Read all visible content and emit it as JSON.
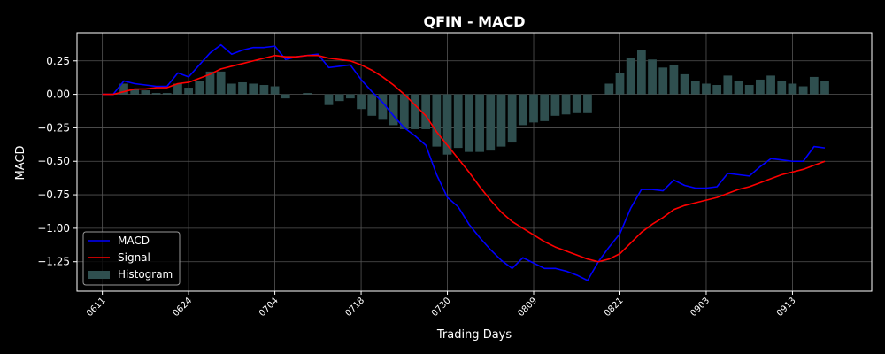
{
  "chart_data": {
    "type": "line",
    "title": "QFIN - MACD",
    "xlabel": "Trading Days",
    "ylabel": "MACD",
    "ylim": [
      -1.47,
      0.46
    ],
    "xlim": [
      -2.35,
      71.35
    ],
    "grid": true,
    "legend_position": "lower-left",
    "yticks": [
      0.25,
      0.0,
      -0.25,
      -0.5,
      -0.75,
      -1.0,
      -1.25
    ],
    "ytick_labels": [
      "0.25",
      "0.00",
      "−0.25",
      "−0.50",
      "−0.75",
      "−1.00",
      "−1.25"
    ],
    "xticks": [
      {
        "index": 0,
        "label": "0611"
      },
      {
        "index": 8,
        "label": "0624"
      },
      {
        "index": 16,
        "label": "0704"
      },
      {
        "index": 24,
        "label": "0718"
      },
      {
        "index": 32,
        "label": "0730"
      },
      {
        "index": 40,
        "label": "0809"
      },
      {
        "index": 48,
        "label": "0821"
      },
      {
        "index": 56,
        "label": "0903"
      },
      {
        "index": 64,
        "label": "0913"
      }
    ],
    "colors": {
      "macd": "#0000ff",
      "signal": "#ff0000",
      "histogram": "#2f4f4f",
      "background": "#000000",
      "grid": "#555555",
      "axes": "#ffffff"
    },
    "series": [
      {
        "name": "MACD",
        "kind": "line",
        "values": [
          0.0,
          0.0,
          0.1,
          0.08,
          0.07,
          0.06,
          0.06,
          0.16,
          0.13,
          0.22,
          0.31,
          0.37,
          0.3,
          0.33,
          0.35,
          0.35,
          0.36,
          0.26,
          0.28,
          0.29,
          0.3,
          0.2,
          0.21,
          0.22,
          0.11,
          0.02,
          -0.06,
          -0.16,
          -0.25,
          -0.31,
          -0.38,
          -0.6,
          -0.77,
          -0.84,
          -0.97,
          -1.07,
          -1.16,
          -1.24,
          -1.3,
          -1.22,
          -1.26,
          -1.3,
          -1.3,
          -1.32,
          -1.35,
          -1.39,
          -1.25,
          -1.14,
          -1.04,
          -0.85,
          -0.71,
          -0.71,
          -0.72,
          -0.64,
          -0.68,
          -0.7,
          -0.7,
          -0.69,
          -0.59,
          -0.6,
          -0.61,
          -0.54,
          -0.48,
          -0.49,
          -0.5,
          -0.5,
          -0.39,
          -0.4
        ]
      },
      {
        "name": "Signal",
        "kind": "line",
        "values": [
          0.0,
          0.0,
          0.02,
          0.04,
          0.04,
          0.05,
          0.05,
          0.08,
          0.09,
          0.12,
          0.15,
          0.19,
          0.21,
          0.23,
          0.25,
          0.27,
          0.29,
          0.28,
          0.28,
          0.29,
          0.29,
          0.27,
          0.26,
          0.25,
          0.22,
          0.18,
          0.13,
          0.07,
          0.0,
          -0.08,
          -0.16,
          -0.28,
          -0.38,
          -0.48,
          -0.58,
          -0.69,
          -0.79,
          -0.88,
          -0.95,
          -1.0,
          -1.05,
          -1.1,
          -1.14,
          -1.17,
          -1.2,
          -1.23,
          -1.25,
          -1.23,
          -1.19,
          -1.11,
          -1.03,
          -0.97,
          -0.92,
          -0.86,
          -0.83,
          -0.81,
          -0.79,
          -0.77,
          -0.74,
          -0.71,
          -0.69,
          -0.66,
          -0.63,
          -0.6,
          -0.58,
          -0.56,
          -0.53,
          -0.5
        ]
      },
      {
        "name": "Histogram",
        "kind": "bar",
        "values": [
          0.0,
          0.0,
          0.08,
          0.04,
          0.03,
          0.01,
          0.01,
          0.08,
          0.05,
          0.1,
          0.17,
          0.17,
          0.08,
          0.09,
          0.08,
          0.07,
          0.06,
          -0.03,
          0.0,
          0.01,
          0.0,
          -0.08,
          -0.05,
          -0.03,
          -0.11,
          -0.16,
          -0.19,
          -0.23,
          -0.26,
          -0.26,
          -0.26,
          -0.39,
          -0.45,
          -0.4,
          -0.43,
          -0.43,
          -0.42,
          -0.39,
          -0.36,
          -0.23,
          -0.21,
          -0.2,
          -0.16,
          -0.15,
          -0.14,
          -0.14,
          0.0,
          0.08,
          0.16,
          0.27,
          0.33,
          0.26,
          0.2,
          0.22,
          0.15,
          0.1,
          0.08,
          0.07,
          0.14,
          0.1,
          0.07,
          0.11,
          0.14,
          0.1,
          0.08,
          0.06,
          0.13,
          0.1
        ]
      }
    ]
  }
}
